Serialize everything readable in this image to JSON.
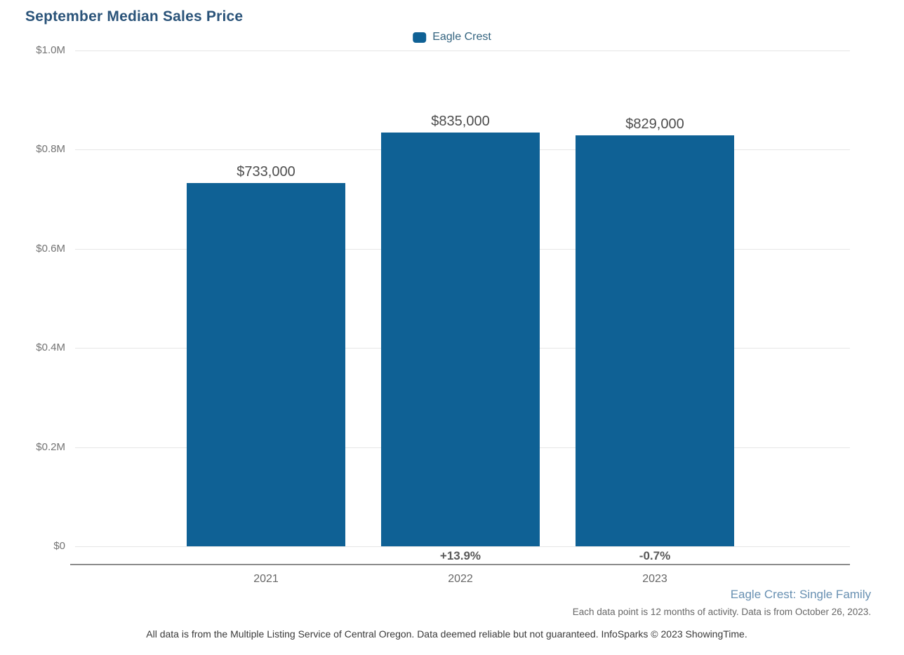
{
  "title": "September Median Sales Price",
  "legend": {
    "label": "Eagle Crest",
    "swatch_color": "#0F6195"
  },
  "footnotes": {
    "series_note": "Eagle Crest: Single Family",
    "data_note": "Each data point is 12 months of activity. Data is from October 26, 2023.",
    "disclaimer": "All data is from the Multiple Listing Service of Central Oregon. Data deemed reliable but not guaranteed. InfoSparks © 2023 ShowingTime."
  },
  "colors": {
    "bar": "#0F6195",
    "title_text": "#2A5379",
    "legend_text": "#33637F",
    "grid_line": "#E6E6E6",
    "axis_line": "#8C8C8C",
    "y_tick_text": "#737373",
    "x_tick_text": "#666666",
    "value_text": "#4D4D4D",
    "pct_text": "#595959",
    "series_note_text": "#6890B2",
    "data_note_text": "#666666",
    "disclaimer_text": "#3A3A3A"
  },
  "chart_data": {
    "type": "bar",
    "title": "September Median Sales Price",
    "series": [
      {
        "name": "Eagle Crest",
        "values": [
          733000,
          835000,
          829000
        ]
      }
    ],
    "categories": [
      "2021",
      "2022",
      "2023"
    ],
    "value_labels": [
      "$733,000",
      "$835,000",
      "$829,000"
    ],
    "pct_changes": [
      null,
      "+13.9%",
      "-0.7%"
    ],
    "xlabel": "",
    "ylabel": "",
    "ylim": [
      0,
      1000000
    ],
    "yticks": [
      {
        "value": 0,
        "label": "$0"
      },
      {
        "value": 200000,
        "label": "$0.2M"
      },
      {
        "value": 400000,
        "label": "$0.4M"
      },
      {
        "value": 600000,
        "label": "$0.6M"
      },
      {
        "value": 800000,
        "label": "$0.8M"
      },
      {
        "value": 1000000,
        "label": "$1.0M"
      }
    ],
    "grid": "horizontal",
    "legend_position": "top-center"
  }
}
